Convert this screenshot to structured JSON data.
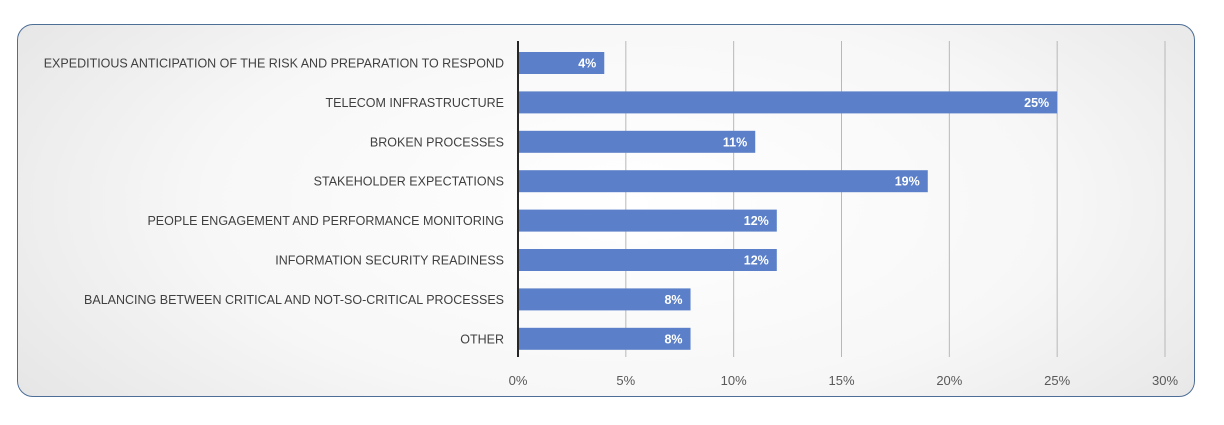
{
  "chart_data": {
    "type": "bar",
    "orientation": "horizontal",
    "categories": [
      "EXPEDITIOUS ANTICIPATION OF THE RISK AND PREPARATION TO RESPOND",
      "TELECOM INFRASTRUCTURE",
      "BROKEN PROCESSES",
      "STAKEHOLDER EXPECTATIONS",
      "PEOPLE ENGAGEMENT AND PERFORMANCE MONITORING",
      "INFORMATION SECURITY READINESS",
      "BALANCING BETWEEN CRITICAL AND NOT-SO-CRITICAL PROCESSES",
      "OTHER"
    ],
    "values": [
      4,
      25,
      11,
      19,
      12,
      12,
      8,
      8
    ],
    "value_labels": [
      "4%",
      "25%",
      "11%",
      "19%",
      "12%",
      "12%",
      "8%",
      "8%"
    ],
    "xlim": [
      0,
      30
    ],
    "x_ticks": [
      0,
      5,
      10,
      15,
      20,
      25,
      30
    ],
    "x_tick_labels": [
      "0%",
      "5%",
      "10%",
      "15%",
      "20%",
      "25%",
      "30%"
    ],
    "grid": "vertical",
    "bar_color": "#5b80c9",
    "axis_color": "#262626",
    "grid_color": "#b8b8b8",
    "frame_border_color": "#4d6e96"
  }
}
